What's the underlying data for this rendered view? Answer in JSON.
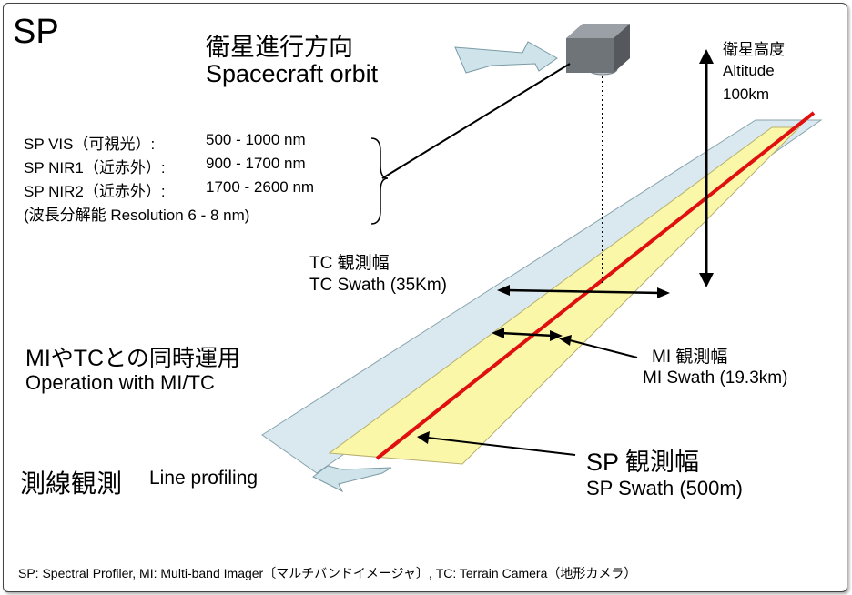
{
  "title": "SP",
  "orbit": {
    "ja": "衛星進行方向",
    "en": "Spacecraft orbit"
  },
  "altitude": {
    "ja": "衛星高度",
    "en": "Altitude",
    "value": "100km"
  },
  "bands": [
    {
      "name": "SP VIS（可視光）:",
      "range": "500 - 1000 nm"
    },
    {
      "name": "SP NIR1（近赤外）:",
      "range": "900 - 1700 nm"
    },
    {
      "name": "SP NIR2（近赤外）:",
      "range": "1700 - 2600 nm"
    }
  ],
  "resolution": "(波長分解能 Resolution 6 - 8 nm)",
  "tc_swath": {
    "ja": "TC 観測幅",
    "en": "TC Swath (35Km)"
  },
  "mi_swath": {
    "ja": "MI 観測幅",
    "en": "MI Swath (19.3km)"
  },
  "sp_swath": {
    "ja": "SP 観測幅",
    "en": "SP Swath (500m)"
  },
  "operation": {
    "ja": "MIやTCとの同時運用",
    "en": "Operation with MI/TC"
  },
  "line_profiling": {
    "ja": "測線観測",
    "en": "Line profiling"
  },
  "footnote": "SP: Spectral Profiler, MI: Multi-band Imager〔マルチバンドイメージャ〕, TC: Terrain Camera（地形カメラ）",
  "colors": {
    "tc_swath": "#d9e9ef",
    "mi_swath": "#fbf7a8",
    "sp_line": "#e01010",
    "arrow_fill": "#cfe3ea",
    "camera": "#6f7478"
  }
}
